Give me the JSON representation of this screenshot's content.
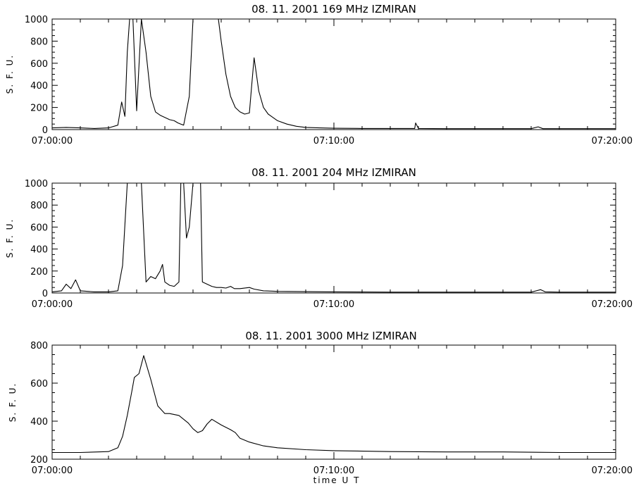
{
  "chart_data": [
    {
      "type": "line",
      "title": "08.  11.  2001    169  MHz    IZMIRAN",
      "ylabel": "S.  F.  U.",
      "xlabel": "",
      "ylim": [
        0,
        1000
      ],
      "yticks": [
        0,
        200,
        400,
        600,
        800,
        1000
      ],
      "xlim": [
        "07:00:00",
        "07:20:00"
      ],
      "xticks": [
        "07:00:00",
        "07:10:00",
        "07:20:00"
      ],
      "grid": false,
      "series": [
        {
          "x": [
            "07:00:00",
            "07:00:30",
            "07:01:00",
            "07:01:30",
            "07:02:00",
            "07:02:20",
            "07:02:28",
            "07:02:35",
            "07:02:40",
            "07:02:45",
            "07:02:52",
            "07:03:00",
            "07:03:10",
            "07:03:20",
            "07:03:30",
            "07:03:40",
            "07:03:50",
            "07:04:00",
            "07:04:10",
            "07:04:20",
            "07:04:28",
            "07:04:34",
            "07:04:40",
            "07:04:52",
            "07:05:00",
            "07:05:10",
            "07:05:20",
            "07:05:30",
            "07:05:40",
            "07:05:50",
            "07:05:54",
            "07:06:00",
            "07:06:10",
            "07:06:20",
            "07:06:30",
            "07:06:40",
            "07:06:50",
            "07:07:00",
            "07:07:05",
            "07:07:10",
            "07:07:15",
            "07:07:20",
            "07:07:30",
            "07:07:40",
            "07:07:50",
            "07:08:00",
            "07:08:20",
            "07:08:40",
            "07:09:00",
            "07:09:30",
            "07:10:00",
            "07:11:00",
            "07:12:00",
            "07:12:52",
            "07:12:54",
            "07:13:00",
            "07:14:00",
            "07:15:00",
            "07:16:00",
            "07:17:00",
            "07:17:15",
            "07:17:25",
            "07:18:00",
            "07:19:00",
            "07:20:00"
          ],
          "y": [
            15,
            20,
            15,
            10,
            15,
            40,
            250,
            120,
            700,
            1000,
            1000,
            170,
            1000,
            700,
            300,
            160,
            130,
            110,
            90,
            80,
            60,
            50,
            40,
            300,
            1000,
            1000,
            1000,
            1000,
            1000,
            1000,
            1000,
            800,
            500,
            300,
            200,
            160,
            140,
            150,
            400,
            650,
            500,
            350,
            200,
            140,
            110,
            80,
            50,
            30,
            20,
            15,
            12,
            10,
            10,
            10,
            60,
            10,
            8,
            8,
            8,
            8,
            25,
            8,
            8,
            8,
            8
          ]
        }
      ]
    },
    {
      "type": "line",
      "title": "08.  11.  2001    204  MHz    IZMIRAN",
      "ylabel": "S.  F.  U.",
      "xlabel": "",
      "ylim": [
        0,
        1000
      ],
      "yticks": [
        0,
        200,
        400,
        600,
        800,
        1000
      ],
      "xlim": [
        "07:00:00",
        "07:20:00"
      ],
      "xticks": [
        "07:00:00",
        "07:10:00",
        "07:20:00"
      ],
      "grid": false,
      "series": [
        {
          "x": [
            "07:00:00",
            "07:00:20",
            "07:00:30",
            "07:00:40",
            "07:00:50",
            "07:01:00",
            "07:01:30",
            "07:02:00",
            "07:02:20",
            "07:02:30",
            "07:02:36",
            "07:02:40",
            "07:02:45",
            "07:03:00",
            "07:03:10",
            "07:03:20",
            "07:03:30",
            "07:03:40",
            "07:03:50",
            "07:03:55",
            "07:04:00",
            "07:04:10",
            "07:04:20",
            "07:04:30",
            "07:04:34",
            "07:04:40",
            "07:04:46",
            "07:04:52",
            "07:05:00",
            "07:05:10",
            "07:05:16",
            "07:05:20",
            "07:05:30",
            "07:05:40",
            "07:05:50",
            "07:06:00",
            "07:06:10",
            "07:06:20",
            "07:06:28",
            "07:06:40",
            "07:07:00",
            "07:07:10",
            "07:07:30",
            "07:08:00",
            "07:09:00",
            "07:10:00",
            "07:12:00",
            "07:14:00",
            "07:16:00",
            "07:17:00",
            "07:17:20",
            "07:17:30",
            "07:18:00",
            "07:19:00",
            "07:20:00"
          ],
          "y": [
            10,
            20,
            80,
            40,
            120,
            20,
            10,
            10,
            20,
            250,
            700,
            1000,
            1000,
            1000,
            1000,
            100,
            150,
            130,
            200,
            260,
            100,
            70,
            60,
            100,
            1000,
            1000,
            500,
            600,
            1000,
            1000,
            1000,
            100,
            80,
            60,
            50,
            50,
            45,
            60,
            40,
            40,
            50,
            35,
            20,
            15,
            12,
            10,
            8,
            8,
            8,
            8,
            30,
            10,
            8,
            8,
            8
          ]
        }
      ]
    },
    {
      "type": "line",
      "title": "08.  11.  2001    3000  MHz    IZMIRAN",
      "ylabel": "S.  F.  U.",
      "xlabel": "time    U T",
      "ylim": [
        200,
        800
      ],
      "yticks": [
        200,
        400,
        600,
        800
      ],
      "xlim": [
        "07:00:00",
        "07:20:00"
      ],
      "xticks": [
        "07:00:00",
        "07:10:00",
        "07:20:00"
      ],
      "grid": false,
      "series": [
        {
          "x": [
            "07:00:00",
            "07:01:00",
            "07:02:00",
            "07:02:20",
            "07:02:30",
            "07:02:40",
            "07:02:50",
            "07:02:55",
            "07:03:05",
            "07:03:15",
            "07:03:30",
            "07:03:45",
            "07:04:00",
            "07:04:10",
            "07:04:30",
            "07:04:50",
            "07:05:00",
            "07:05:10",
            "07:05:20",
            "07:05:30",
            "07:05:40",
            "07:06:00",
            "07:06:20",
            "07:06:30",
            "07:06:40",
            "07:07:00",
            "07:07:30",
            "07:08:00",
            "07:09:00",
            "07:10:00",
            "07:12:00",
            "07:14:00",
            "07:16:00",
            "07:18:00",
            "07:20:00"
          ],
          "y": [
            235,
            235,
            240,
            260,
            320,
            430,
            560,
            630,
            650,
            745,
            620,
            480,
            440,
            440,
            430,
            390,
            360,
            340,
            350,
            385,
            410,
            380,
            355,
            340,
            310,
            290,
            270,
            260,
            250,
            245,
            240,
            238,
            238,
            235,
            235
          ]
        }
      ]
    }
  ]
}
